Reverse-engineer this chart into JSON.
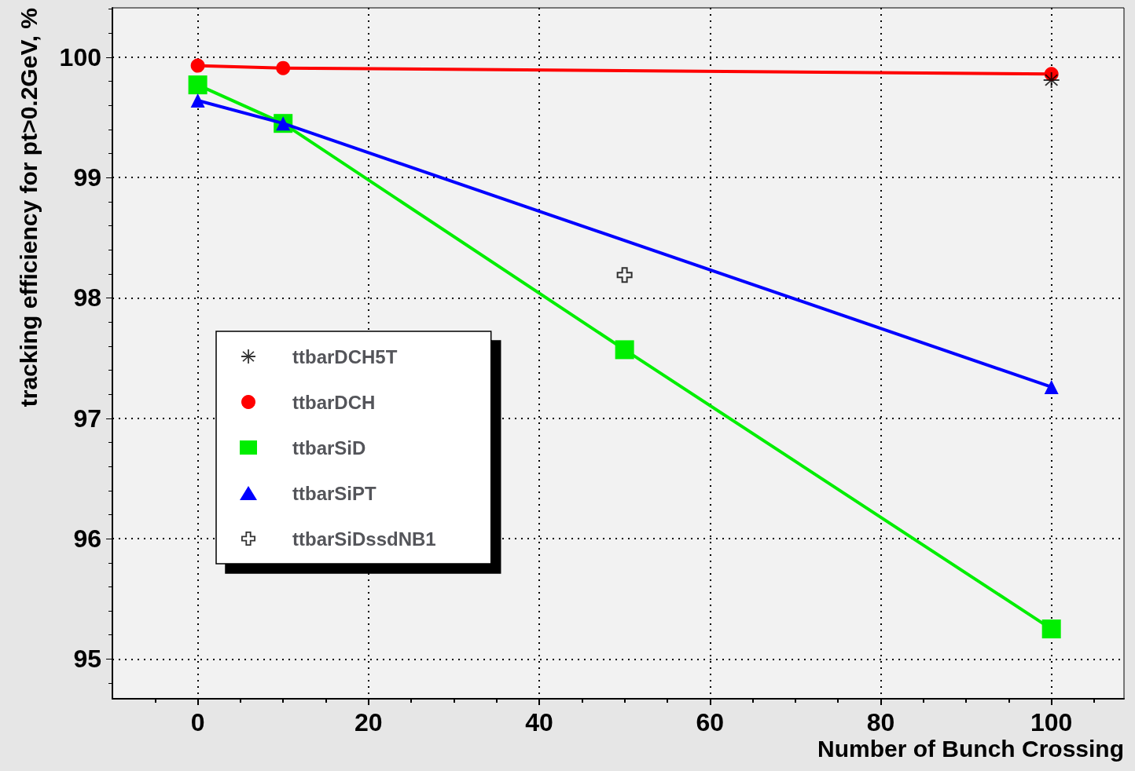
{
  "chart_data": {
    "type": "line",
    "xlabel": "Number of Bunch Crossing",
    "ylabel": "tracking efficiency for pt>0.2GeV, %",
    "xlim": [
      -10,
      108.5
    ],
    "xticks": [
      0,
      20,
      40,
      60,
      80,
      100
    ],
    "ylim": [
      94.67,
      100.41
    ],
    "yticks": [
      95,
      96,
      97,
      98,
      99,
      100
    ],
    "grid": true,
    "legend": "left",
    "line_style": "solid",
    "series": [
      {
        "name": "ttbarDCH5T",
        "type": "scatter",
        "marker": "star",
        "color": "#000000",
        "x": [
          100
        ],
        "values": [
          99.81
        ]
      },
      {
        "name": "ttbarDCH",
        "marker": "circle",
        "color": "#ff0000",
        "x": [
          0,
          10,
          100
        ],
        "values": [
          99.93,
          99.91,
          99.86
        ]
      },
      {
        "name": "ttbarSiD",
        "marker": "square",
        "color": "#00ee00",
        "x": [
          0,
          10,
          50,
          100
        ],
        "values": [
          99.77,
          99.45,
          97.57,
          95.25
        ]
      },
      {
        "name": "ttbarSiPT",
        "marker": "triangle",
        "color": "#0000ff",
        "x": [
          0,
          10,
          100
        ],
        "values": [
          99.64,
          99.45,
          97.26
        ]
      },
      {
        "name": "ttbarSiDssdNB1",
        "type": "scatter",
        "marker": "cross",
        "color": "#000000",
        "x": [
          50
        ],
        "values": [
          98.19
        ]
      }
    ]
  }
}
